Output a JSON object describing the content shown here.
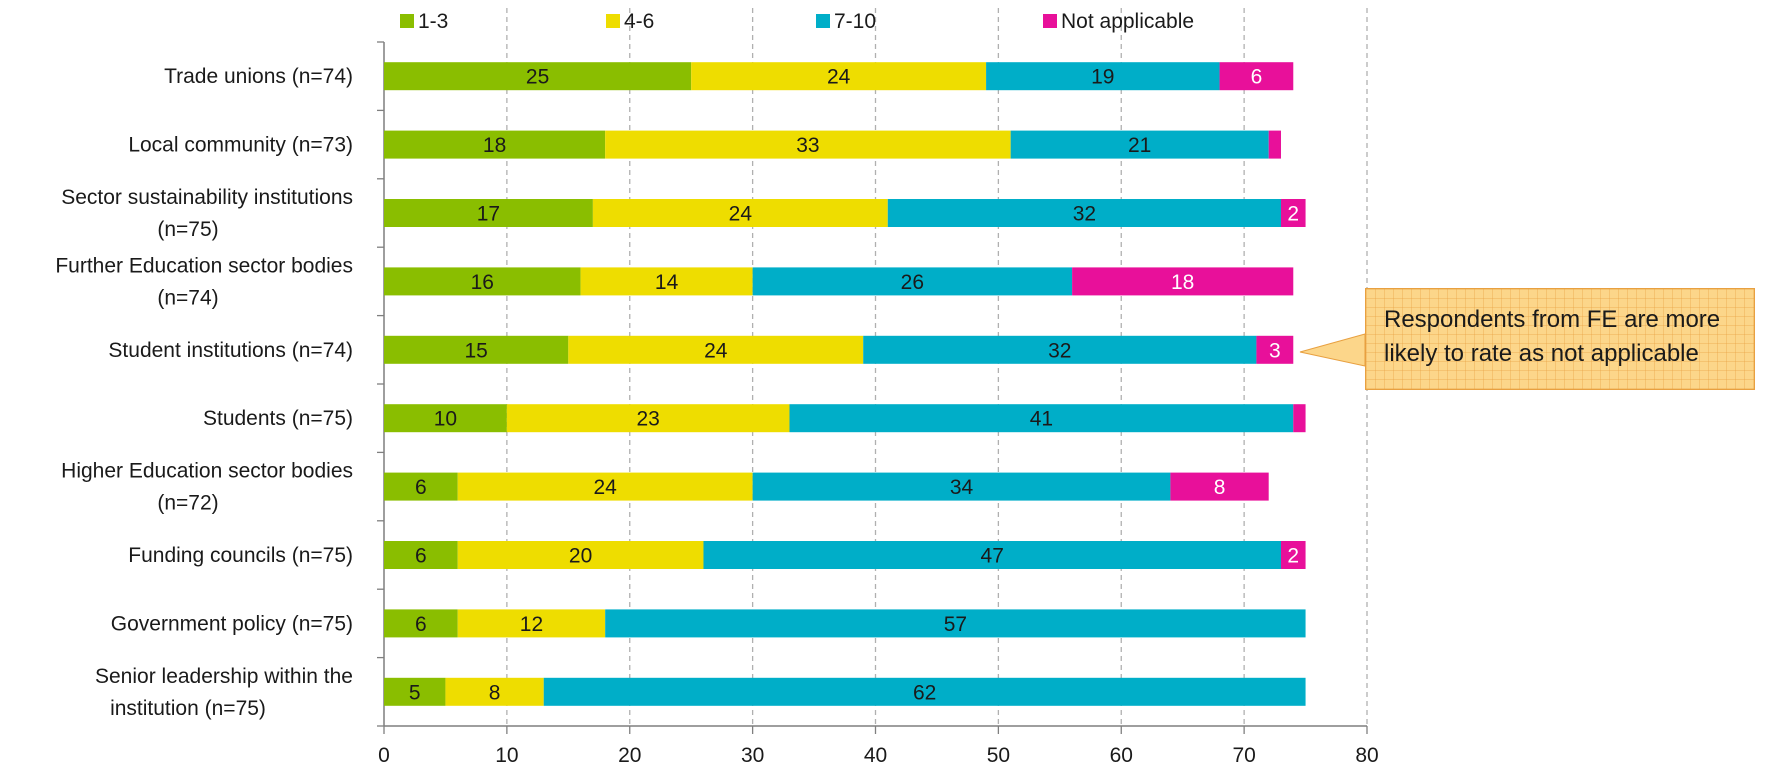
{
  "chart_data": {
    "type": "bar",
    "orientation": "horizontal",
    "stacked": true,
    "categories": [
      "Trade unions (n=74)",
      "Local community  (n=73)",
      "Sector sustainability institutions (n=75)",
      "Further Education sector bodies (n=74)",
      "Student institutions (n=74)",
      "Students (n=75)",
      "Higher Education sector bodies (n=72)",
      "Funding councils  (n=75)",
      "Government policy  (n=75)",
      "Senior leadership within the institution (n=75)"
    ],
    "category_lines": [
      [
        "Trade unions (n=74)"
      ],
      [
        "Local community  (n=73)"
      ],
      [
        "Sector sustainability institutions",
        "(n=75)"
      ],
      [
        "Further Education sector bodies",
        "(n=74)"
      ],
      [
        "Student institutions (n=74)"
      ],
      [
        "Students (n=75)"
      ],
      [
        "Higher Education sector bodies",
        "(n=72)"
      ],
      [
        "Funding councils  (n=75)"
      ],
      [
        "Government policy  (n=75)"
      ],
      [
        "Senior leadership within the",
        "institution (n=75)"
      ]
    ],
    "series": [
      {
        "name": "1-3",
        "color": "#8abe00",
        "label_color": "#1a1a1a",
        "values": [
          25,
          18,
          17,
          16,
          15,
          10,
          6,
          6,
          6,
          5
        ]
      },
      {
        "name": "4-6",
        "color": "#eedd00",
        "label_color": "#1a1a1a",
        "values": [
          24,
          33,
          24,
          14,
          24,
          23,
          24,
          20,
          12,
          8
        ]
      },
      {
        "name": "7-10",
        "color": "#00aec8",
        "label_color": "#1a1a1a",
        "values": [
          19,
          21,
          32,
          26,
          32,
          41,
          34,
          47,
          57,
          62
        ]
      },
      {
        "name": "Not applicable",
        "color": "#e8109a",
        "label_color": "#ffffff",
        "values": [
          6,
          1,
          2,
          18,
          3,
          1,
          8,
          2,
          0,
          0
        ]
      }
    ],
    "labels_shown": [
      [
        true,
        true,
        true,
        true
      ],
      [
        true,
        true,
        true,
        false
      ],
      [
        true,
        true,
        true,
        true
      ],
      [
        true,
        true,
        true,
        true
      ],
      [
        true,
        true,
        true,
        true
      ],
      [
        true,
        true,
        true,
        false
      ],
      [
        true,
        true,
        true,
        true
      ],
      [
        true,
        true,
        true,
        true
      ],
      [
        true,
        true,
        true,
        false
      ],
      [
        true,
        true,
        true,
        false
      ]
    ],
    "xlim": [
      0,
      80
    ],
    "xticks": [
      0,
      10,
      20,
      30,
      40,
      50,
      60,
      70,
      80
    ],
    "grid": "vertical dashed",
    "legend_position": "top",
    "title": "",
    "xlabel": "",
    "ylabel": ""
  },
  "annotation": {
    "text": "Respondents from FE are more likely to rate as not applicable",
    "target_category": "Student institutions (n=74)",
    "fill": "#fcd68a",
    "border": "#e8a040"
  }
}
